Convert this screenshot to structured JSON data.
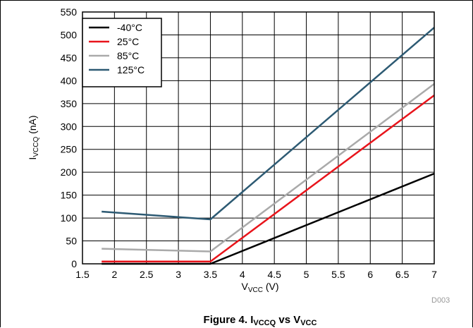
{
  "chart_data": {
    "type": "line",
    "title": "",
    "xlabel": {
      "main": "V",
      "sub": "VCC",
      "suffix": " (V)"
    },
    "ylabel": {
      "main": "I",
      "sub": "VCCQ",
      "suffix": " (nA)"
    },
    "xlim": [
      1.5,
      7
    ],
    "ylim": [
      0,
      550
    ],
    "xticks": [
      1.5,
      2,
      2.5,
      3,
      3.5,
      4,
      4.5,
      5,
      5.5,
      6,
      6.5,
      7
    ],
    "yticks": [
      0,
      50,
      100,
      150,
      200,
      250,
      300,
      350,
      400,
      450,
      500,
      550
    ],
    "xtick_labels": [
      "1.5",
      "2",
      "2.5",
      "3",
      "3.5",
      "4",
      "4.5",
      "5",
      "5.5",
      "6",
      "6.5",
      "7"
    ],
    "ytick_labels": [
      "0",
      "50",
      "100",
      "150",
      "200",
      "250",
      "300",
      "350",
      "400",
      "450",
      "500",
      "550"
    ],
    "grid": true,
    "legend_position": "top-left",
    "series": [
      {
        "name": "-40°C",
        "color": "#000000",
        "x": [
          1.8,
          3.5,
          7
        ],
        "y": [
          0,
          0,
          197
        ]
      },
      {
        "name": "25°C",
        "color": "#e8141b",
        "x": [
          1.8,
          3.5,
          7
        ],
        "y": [
          5,
          5,
          368
        ]
      },
      {
        "name": "85°C",
        "color": "#aaaaaa",
        "x": [
          1.8,
          3.5,
          7
        ],
        "y": [
          33,
          27,
          393
        ]
      },
      {
        "name": "125°C",
        "color": "#2d5a73",
        "x": [
          1.8,
          3.5,
          7
        ],
        "y": [
          114,
          97,
          516
        ]
      }
    ],
    "annotation": "D003"
  },
  "caption": {
    "prefix": "Figure 4. I",
    "sub1": "VCCQ",
    "mid": " vs V",
    "sub2": "VCC"
  }
}
